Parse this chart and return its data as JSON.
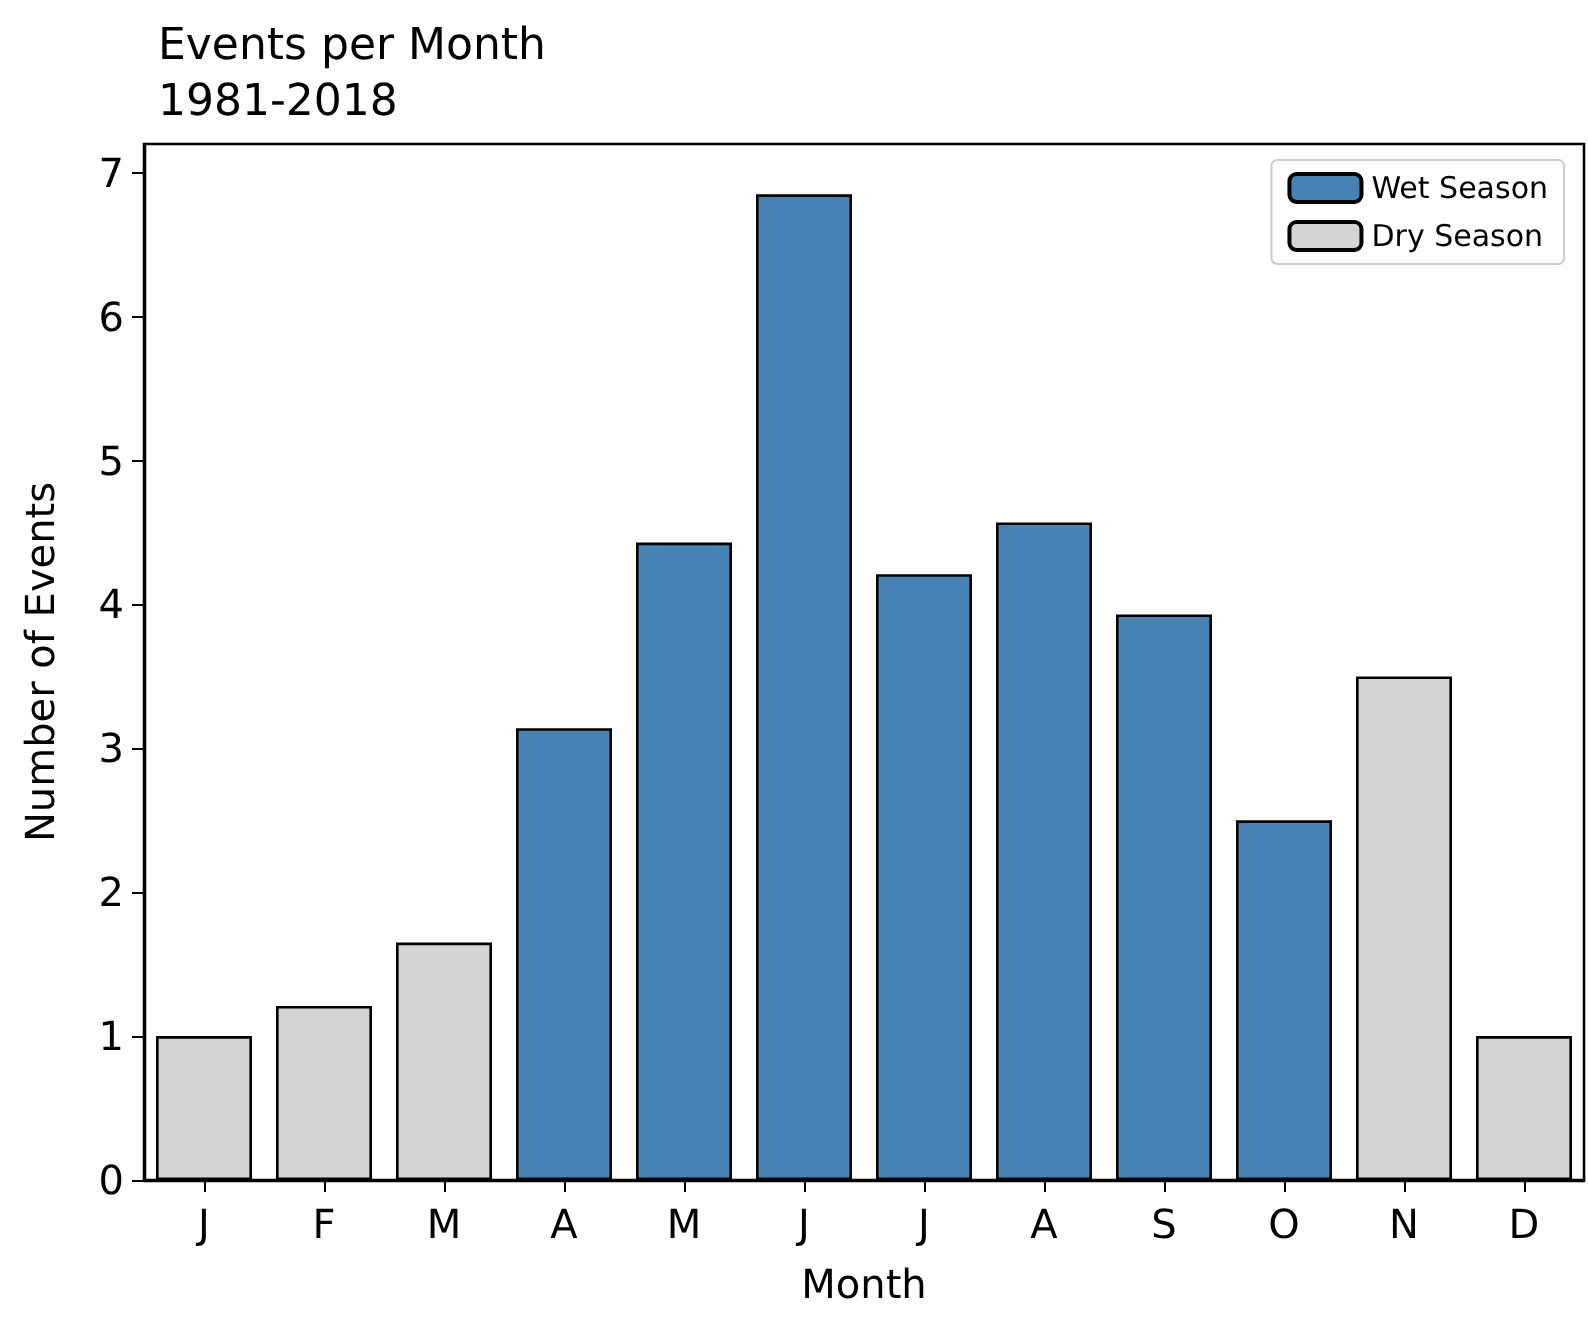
{
  "chart_data": {
    "type": "bar",
    "title": "Events per Month\n1981-2018",
    "xlabel": "Month",
    "ylabel": "Number of Events",
    "categories": [
      "J",
      "F",
      "M",
      "A",
      "M",
      "J",
      "J",
      "A",
      "S",
      "O",
      "N",
      "D"
    ],
    "series": [
      {
        "name": "Wet Season",
        "color": "#4682b4",
        "values": [
          null,
          null,
          null,
          3.14,
          4.43,
          6.85,
          4.21,
          4.57,
          3.93,
          2.5,
          null,
          null
        ]
      },
      {
        "name": "Dry Season",
        "color": "#d3d3d3",
        "values": [
          1.0,
          1.21,
          1.65,
          null,
          null,
          null,
          null,
          null,
          null,
          null,
          3.5,
          1.0
        ]
      }
    ],
    "ylim": [
      0,
      7.2
    ],
    "yticks": [
      0,
      1,
      2,
      3,
      4,
      5,
      6,
      7
    ],
    "grid": false,
    "legend": "top right"
  }
}
